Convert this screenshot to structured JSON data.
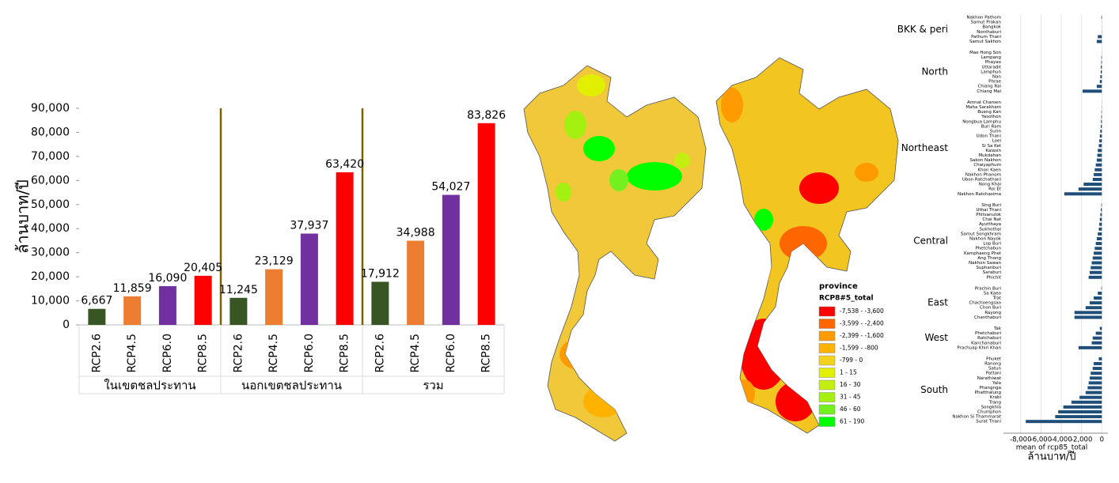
{
  "chart_data": [
    {
      "type": "bar",
      "y_label": "ล้านบาท/ปี",
      "categories": [
        "RCP2.6",
        "RCP4.5",
        "RCP6.0",
        "RCP8.5",
        "RCP2.6",
        "RCP4.5",
        "RCP6.0",
        "RCP8.5",
        "RCP2.6",
        "RCP4.5",
        "RCP6.0",
        "RCP8.5"
      ],
      "groups": [
        "ในเขตชลประทาน",
        "นอกเขตชลประทาน",
        "รวม"
      ],
      "values": [
        6667,
        11859,
        16090,
        20405,
        11245,
        23129,
        37937,
        63420,
        17912,
        34988,
        54027,
        83826
      ],
      "value_labels": [
        "6,667",
        "11,859",
        "16,090",
        "20,405",
        "11,245",
        "23,129",
        "37,937",
        "63,420",
        "17,912",
        "34,988",
        "54,027",
        "83,826"
      ],
      "colors": [
        "#375623",
        "#ed7d31",
        "#7030a0",
        "#ff0000",
        "#375623",
        "#ed7d31",
        "#7030a0",
        "#ff0000",
        "#375623",
        "#ed7d31",
        "#7030a0",
        "#ff0000"
      ],
      "ylim": [
        0,
        90000
      ],
      "yticks": [
        0,
        {
          "value": 10000,
          "label": "10,000"
        },
        {
          "value": 20000,
          "label": "20,000"
        },
        {
          "value": 30000,
          "label": "30,000"
        },
        {
          "value": 40000,
          "label": "40,000"
        },
        {
          "value": 50000,
          "label": "50,000"
        },
        {
          "value": 60000,
          "label": "60,000"
        },
        {
          "value": 70000,
          "label": "70,000"
        },
        {
          "value": 80000,
          "label": "80,000"
        },
        {
          "value": 90000,
          "label": "90,000"
        }
      ]
    },
    {
      "type": "map",
      "legend_title": "province",
      "legend_subtitle": "RCP8#5_total",
      "legend": [
        {
          "label": "-7,538 - -3,600",
          "color": "#ff0000"
        },
        {
          "label": "-3,599 - -2,400",
          "color": "#ff6600"
        },
        {
          "label": "-2,399 - -1,600",
          "color": "#ff9a00"
        },
        {
          "label": "-1,599 - -800",
          "color": "#ffb300"
        },
        {
          "label": "-799 - 0",
          "color": "#f2d21c"
        },
        {
          "label": "1 - 15",
          "color": "#e0f000"
        },
        {
          "label": "16 - 30",
          "color": "#c4ee10"
        },
        {
          "label": "31 - 45",
          "color": "#a4f010"
        },
        {
          "label": "46 - 60",
          "color": "#74f020"
        },
        {
          "label": "61 - 190",
          "color": "#00ff00"
        }
      ]
    },
    {
      "type": "hbar",
      "x_label": "mean of rcp85_total",
      "unit_label": "ล้านบาท/ปี",
      "color": "#1f4e79",
      "xlim": [
        -9700,
        600
      ],
      "xticks": [
        {
          "value": -8000,
          "label": "-8,000"
        },
        {
          "value": -6000,
          "label": "-6,000"
        },
        {
          "value": -4000,
          "label": "-4,000"
        },
        {
          "value": -2000,
          "label": "-2,000"
        },
        0
      ],
      "regions": [
        {
          "name": "BKK & peri",
          "categories": [
            "Nakhon Pathom",
            "Samut Prakan",
            "Bangkok",
            "Nonthaburi",
            "Pathum Thani",
            "Samut Sakhon"
          ],
          "values": [
            -50,
            -10,
            -10,
            -20,
            -400,
            -500
          ]
        },
        {
          "name": "North",
          "categories": [
            "Mae Hong Son",
            "Lampang",
            "Phayao",
            "Uttaradit",
            "Lamphun",
            "Nan",
            "Phrae",
            "Chiang Rai",
            "Chiang Mai"
          ],
          "values": [
            -10,
            -50,
            -60,
            -100,
            -110,
            -150,
            -200,
            -500,
            -1900
          ]
        },
        {
          "name": "Northeast",
          "categories": [
            "Amnat Charoen",
            "Maha Sarakham",
            "Bueng Kan",
            "Yasothon",
            "Nongbua Lamphu",
            "Buri Ram",
            "Surin",
            "Udon Thani",
            "Loei",
            "Si Sa Ket",
            "Kalasin",
            "Mukdahan",
            "Sakon Nakhon",
            "Chaiyaphum",
            "Khon Kaen",
            "Nakhon Phanom",
            "Ubon Ratchathani",
            "Nong Khai",
            "Roi Et",
            "Nakhon Ratchasima"
          ],
          "values": [
            -10,
            -20,
            -40,
            -60,
            -80,
            -100,
            -150,
            -200,
            -250,
            -300,
            -400,
            -450,
            -500,
            -600,
            -700,
            -800,
            -900,
            -1800,
            -2300,
            -3700
          ]
        },
        {
          "name": "Central",
          "categories": [
            "Sing Buri",
            "Uthai Thani",
            "Phitsanulok",
            "Chai Nat",
            "Ayutthaya",
            "Sukhothai",
            "Samut Songkhram",
            "Nakhon Nayok",
            "Lop Buri",
            "Phetchabun",
            "Kamphaeng Phet",
            "Ang Thong",
            "Nakhon Sawan",
            "Suphanburi",
            "Saraburi",
            "Phichit"
          ],
          "values": [
            -50,
            -100,
            -150,
            -200,
            -250,
            -300,
            -400,
            -500,
            -600,
            -700,
            -800,
            -900,
            -1000,
            -1100,
            -1200,
            -1300
          ]
        },
        {
          "name": "East",
          "categories": [
            "Prachin Buri",
            "Sa Kaeo",
            "Trat",
            "Chachoengsao",
            "Chon Buri",
            "Rayong",
            "Chanthaburi"
          ],
          "values": [
            -50,
            -400,
            -800,
            -1200,
            -1600,
            -2700,
            -2700
          ]
        },
        {
          "name": "West",
          "categories": [
            "Tak",
            "Phetchaburi",
            "Ratchaburi",
            "Kanchanaburi",
            "Prachuap Khiri Khan"
          ],
          "values": [
            -200,
            -600,
            -900,
            -1000,
            -2300
          ]
        },
        {
          "name": "South",
          "categories": [
            "Phuket",
            "Ranong",
            "Satun",
            "Pattani",
            "Narathiwat",
            "Yala",
            "Phangnga",
            "Phatthalung",
            "Krabi",
            "Trang",
            "Songkhla",
            "Chumphon",
            "Nakhon Si Thammarat",
            "Surat Thani"
          ],
          "values": [
            -300,
            -800,
            -900,
            -1100,
            -1200,
            -1300,
            -1400,
            -1600,
            -2200,
            -3000,
            -3800,
            -4300,
            -4600,
            -7500
          ]
        }
      ]
    }
  ]
}
